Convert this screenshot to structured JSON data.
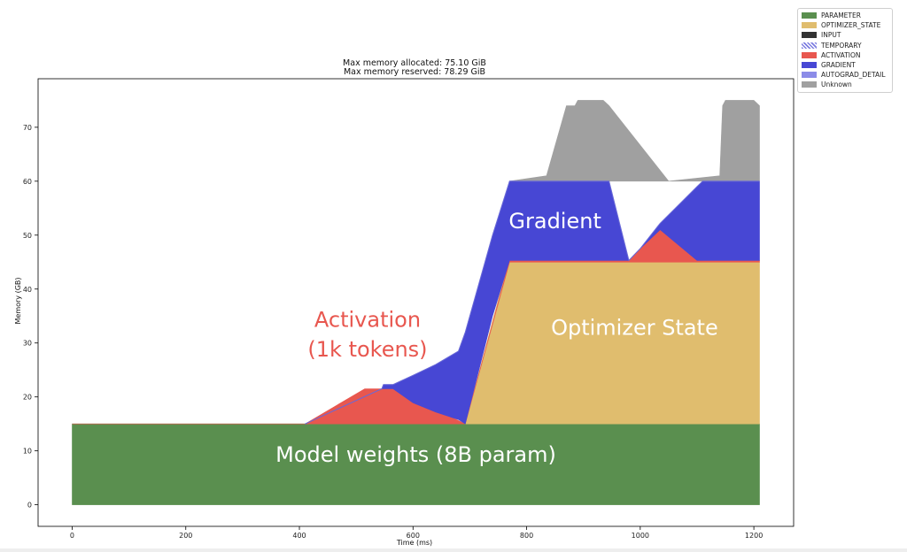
{
  "chart_data": {
    "type": "area",
    "title": [
      "Max memory allocated: 75.10 GiB",
      "Max memory reserved: 78.29 GiB"
    ],
    "xlabel": "Time (ms)",
    "ylabel": "Memory (GB)",
    "xlim": [
      -60,
      1270
    ],
    "ylim": [
      -4,
      79
    ],
    "xticks": [
      0,
      200,
      400,
      600,
      800,
      1000,
      1200
    ],
    "yticks": [
      0,
      10,
      20,
      30,
      40,
      50,
      60,
      70
    ],
    "grid": false,
    "legend_position": "top-right-outside",
    "legend": [
      {
        "label": "PARAMETER",
        "color": "#5a8f4f"
      },
      {
        "label": "OPTIMIZER_STATE",
        "color": "#e0bd6e"
      },
      {
        "label": "INPUT",
        "color": "#333333"
      },
      {
        "label": "TEMPORARY",
        "color": "#7c7ce0",
        "hatched": true
      },
      {
        "label": "ACTIVATION",
        "color": "#e8574f"
      },
      {
        "label": "GRADIENT",
        "color": "#4747d4"
      },
      {
        "label": "AUTOGRAD_DETAIL",
        "color": "#8c8ce8"
      },
      {
        "label": "Unknown",
        "color": "#a0a0a0"
      }
    ],
    "series": [
      {
        "name": "PARAMETER",
        "color": "#5a8f4f",
        "x": [
          0,
          1210
        ],
        "lower": [
          0,
          0
        ],
        "upper": [
          15,
          15
        ]
      },
      {
        "name": "OPTIMIZER_STATE",
        "color": "#e0bd6e",
        "x": [
          692,
          755,
          770,
          1210
        ],
        "lower": [
          15,
          15,
          15,
          15
        ],
        "upper": [
          15,
          40,
          45,
          45
        ]
      },
      {
        "name": "ACTIVATION",
        "color": "#e8574f",
        "x": [
          0,
          410,
          515,
          545,
          565,
          692,
          692,
          770,
          980,
          1000,
          1035,
          1110,
          1210
        ],
        "lower": [
          15,
          15,
          15,
          15,
          15,
          15,
          15,
          45,
          45,
          45,
          45,
          45,
          45
        ],
        "upper": [
          15,
          15,
          21.5,
          21.5,
          21.5,
          15,
          15,
          45.3,
          45.3,
          47.5,
          51,
          45.3,
          45.3
        ]
      },
      {
        "name": "GRADIENT",
        "color": "#4747d4",
        "x": [
          410,
          545,
          548,
          565,
          600,
          640,
          680,
          692,
          692,
          740,
          770,
          945,
          980,
          1000,
          1035,
          1100,
          1110,
          1210
        ],
        "lower": [
          15,
          21.5,
          21.5,
          21.5,
          18.9,
          17.2,
          15.8,
          15,
          15,
          35,
          45.3,
          45.3,
          45.3,
          47.5,
          51,
          45.3,
          45.3,
          45.3
        ],
        "upper": [
          15,
          21.5,
          22.3,
          22.3,
          24,
          26,
          28.5,
          32,
          32,
          50,
          60,
          60,
          45.3,
          47.5,
          52.2,
          59,
          60,
          60
        ]
      },
      {
        "name": "Unknown",
        "color": "#a0a0a0",
        "x": [
          770,
          835,
          870,
          885,
          890,
          935,
          945,
          1050,
          1140,
          1145,
          1150,
          1200,
          1210
        ],
        "lower": [
          60,
          60,
          60,
          60,
          60,
          60,
          60,
          60,
          60,
          60,
          60,
          60,
          60
        ],
        "upper": [
          60,
          61,
          74,
          74,
          75,
          75,
          74,
          60,
          61,
          74,
          75,
          75,
          74
        ]
      }
    ],
    "annotations": [
      {
        "text": "Model weights (8B param)",
        "x": 605,
        "y": 8,
        "color": "#ffffff"
      },
      {
        "text": "Optimizer State",
        "x": 990,
        "y": 31.5,
        "color": "#ffffff"
      },
      {
        "text": "Gradient",
        "x": 850,
        "y": 51.3,
        "color": "#ffffff"
      },
      {
        "text": "Activation",
        "x": 520,
        "y": 33,
        "color": "#e8574f"
      },
      {
        "text": "(1k tokens)",
        "x": 520,
        "y": 27.5,
        "color": "#e8574f"
      }
    ]
  }
}
